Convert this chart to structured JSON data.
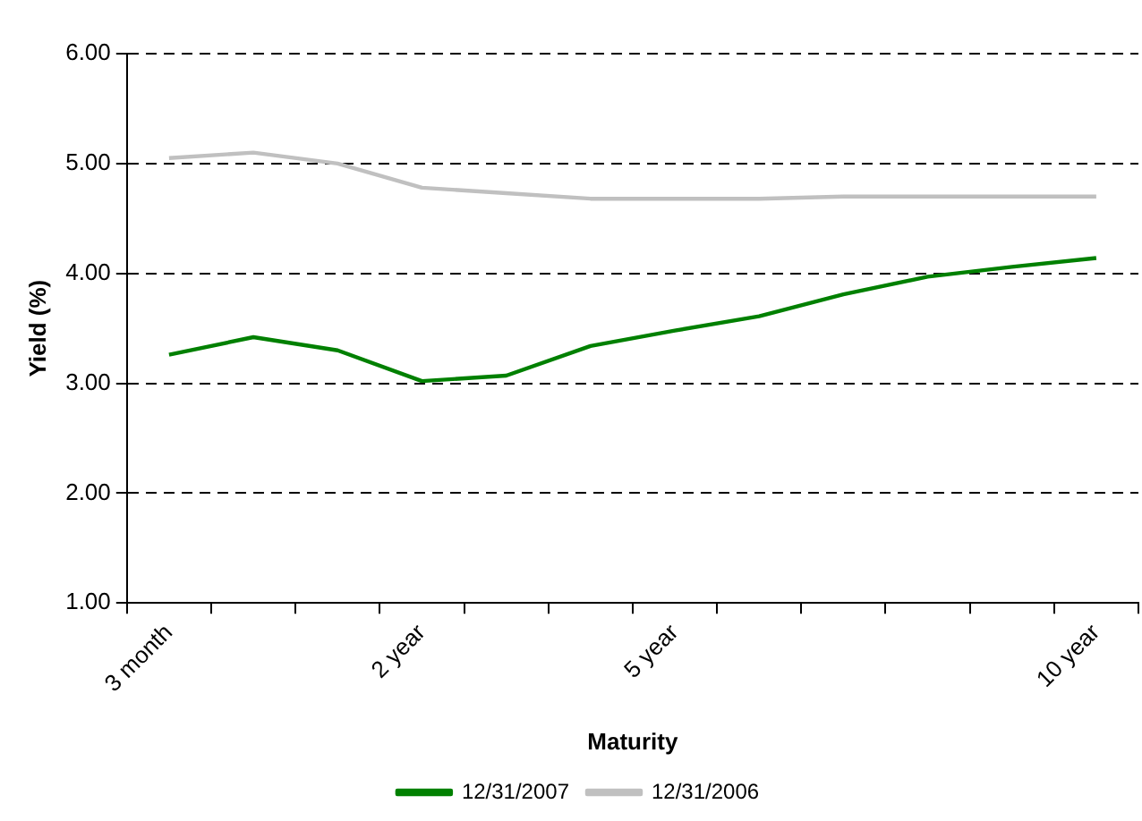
{
  "chart_data": {
    "type": "line",
    "xlabel": "Maturity",
    "ylabel": "Yield (%)",
    "categories": [
      "3 month",
      null,
      null,
      "2 year",
      null,
      null,
      "5 year",
      null,
      null,
      null,
      null,
      "10 year"
    ],
    "series": [
      {
        "name": "12/31/2007",
        "color": "#008000",
        "values": [
          3.26,
          3.42,
          3.3,
          3.02,
          3.07,
          3.34,
          3.48,
          3.61,
          3.81,
          3.97,
          4.06,
          4.14
        ]
      },
      {
        "name": "12/31/2006",
        "color": "#c0c0c0",
        "values": [
          5.05,
          5.1,
          5.0,
          4.78,
          4.73,
          4.68,
          4.68,
          4.68,
          4.7,
          4.7,
          4.7,
          4.7
        ]
      }
    ],
    "ylim": [
      1,
      6
    ],
    "yticks": [
      {
        "value": 1,
        "label": "1.00"
      },
      {
        "value": 2,
        "label": "2.00"
      },
      {
        "value": 3,
        "label": "3.00"
      },
      {
        "value": 4,
        "label": "4.00"
      },
      {
        "value": 5,
        "label": "5.00"
      },
      {
        "value": 6,
        "label": "6.00"
      }
    ],
    "grid": "y",
    "legend": "bottom",
    "marker": "none",
    "line_style": "solid"
  }
}
